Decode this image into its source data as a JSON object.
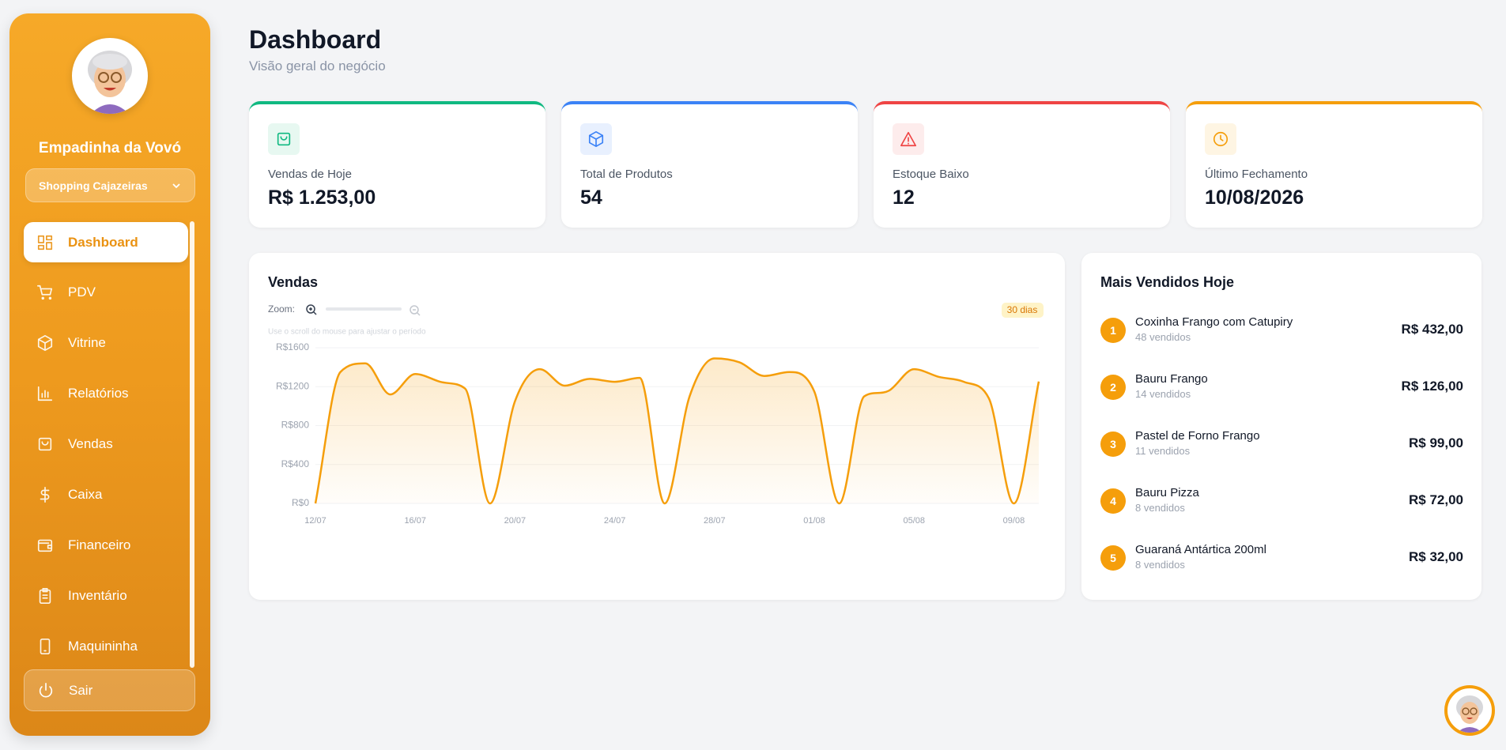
{
  "sidebar": {
    "brand": "Empadinha da Vovó",
    "store": "Shopping Cajazeiras",
    "nav": [
      "Dashboard",
      "PDV",
      "Vitrine",
      "Relatórios",
      "Vendas",
      "Caixa",
      "Financeiro",
      "Inventário",
      "Maquininha"
    ],
    "logout": "Sair"
  },
  "header": {
    "title": "Dashboard",
    "subtitle": "Visão geral do negócio"
  },
  "cards": [
    {
      "label": "Vendas de Hoje",
      "value": "R$ 1.253,00"
    },
    {
      "label": "Total de Produtos",
      "value": "54"
    },
    {
      "label": "Estoque Baixo",
      "value": "12"
    },
    {
      "label": "Último Fechamento",
      "value": "10/08/2026"
    }
  ],
  "chart_data": {
    "type": "line",
    "title": "Vendas",
    "zoom_label": "Zoom:",
    "period": "30 dias",
    "hint": "Use o scroll do mouse para ajustar o período",
    "color": "#f59e0b",
    "x": [
      "12/07",
      null,
      null,
      null,
      "16/07",
      null,
      null,
      null,
      "20/07",
      null,
      null,
      null,
      "24/07",
      null,
      null,
      null,
      "28/07",
      null,
      null,
      null,
      "01/08",
      null,
      null,
      null,
      "05/08",
      null,
      null,
      null,
      "09/08",
      null
    ],
    "values": [
      0,
      1350,
      1440,
      1120,
      1330,
      1250,
      1180,
      0,
      1050,
      1380,
      1210,
      1280,
      1250,
      1290,
      0,
      1100,
      1490,
      1450,
      1310,
      1350,
      1150,
      0,
      1100,
      1160,
      1380,
      1300,
      1250,
      1080,
      0,
      1253
    ],
    "ylim": [
      0,
      1600
    ],
    "yticks": [
      {
        "value": 0,
        "label": "R$0"
      },
      {
        "value": 400,
        "label": "R$400"
      },
      {
        "value": 800,
        "label": "R$800"
      },
      {
        "value": 1200,
        "label": "R$1200"
      },
      {
        "value": 1600,
        "label": "R$1600"
      }
    ],
    "grid": true
  },
  "top_products": {
    "title": "Mais Vendidos Hoje",
    "items": [
      {
        "rank": 1,
        "name": "Coxinha Frango com Catupiry",
        "sold": "48 vendidos",
        "revenue": "R$ 432,00"
      },
      {
        "rank": 2,
        "name": "Bauru Frango",
        "sold": "14 vendidos",
        "revenue": "R$ 126,00"
      },
      {
        "rank": 3,
        "name": "Pastel de Forno Frango",
        "sold": "11 vendidos",
        "revenue": "R$ 99,00"
      },
      {
        "rank": 4,
        "name": "Bauru Pizza",
        "sold": "8 vendidos",
        "revenue": "R$ 72,00"
      },
      {
        "rank": 5,
        "name": "Guaraná Antártica 200ml",
        "sold": "8 vendidos",
        "revenue": "R$ 32,00"
      }
    ]
  }
}
